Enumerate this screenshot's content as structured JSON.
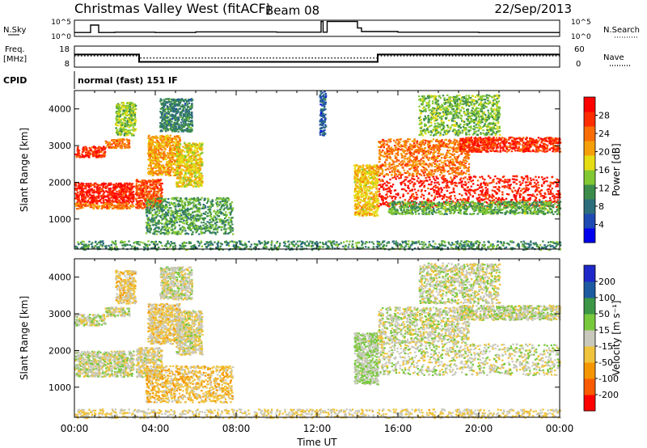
{
  "header": {
    "title": "Christmas Valley West (fitACF)",
    "beam": "Beam 08",
    "date": "22/Sep/2013"
  },
  "sky_panel": {
    "left_label": "N.Sky",
    "left_ticks": [
      "10^5",
      "10^0"
    ],
    "right_ticks": [
      "10^5",
      "10^0"
    ],
    "right_label": "N.Search",
    "series": [
      {
        "x": [
          0,
          0.8,
          1.2,
          2,
          3,
          4,
          6,
          8,
          10,
          12.2,
          12.3,
          12.5,
          14,
          14.2,
          16,
          18,
          20,
          24
        ],
        "y": [
          1.2,
          3.5,
          1.2,
          1.3,
          1.3,
          1.2,
          1.4,
          1.4,
          1.3,
          4.6,
          1.3,
          4.6,
          2.6,
          1.5,
          1.3,
          1.3,
          1.2,
          1.2
        ]
      }
    ]
  },
  "freq_panel": {
    "left_label_line1": "Freq.",
    "left_label_line2": "[MHz]",
    "left_ticks": [
      "18",
      "8"
    ],
    "right_ticks": [
      "60",
      "0"
    ],
    "right_label": "Nave",
    "freq_ylim": [
      8,
      18
    ],
    "freq_steps": [
      {
        "x": [
          0,
          3.2
        ],
        "y": 14
      },
      {
        "x": [
          3.2,
          15
        ],
        "y": 10.5
      },
      {
        "x": [
          15,
          24
        ],
        "y": 14
      }
    ],
    "nave_steps": [
      {
        "x": [
          0,
          3.2
        ],
        "y": 32
      },
      {
        "x": [
          3.2,
          15
        ],
        "y": 26
      },
      {
        "x": [
          15,
          24
        ],
        "y": 32
      }
    ]
  },
  "cpid_panel": {
    "label": "CPID",
    "mode_text": "normal (fast) 151 IF"
  },
  "chart_data": [
    {
      "type": "heatmap",
      "name": "power",
      "ylabel": "Slant Range [km]",
      "xlim": [
        0,
        24
      ],
      "ylim": [
        180,
        4500
      ],
      "yticks": [
        1000,
        2000,
        3000,
        4000
      ],
      "colorbar": {
        "label": "Power [dB]",
        "ticks": [
          "28",
          "24",
          "20",
          "16",
          "12",
          "8",
          "4"
        ],
        "range": [
          0,
          30
        ],
        "colors": [
          "#0000ee",
          "#1e4ab4",
          "#2d6e7c",
          "#3c8c4c",
          "#82c832",
          "#e6dc14",
          "#f5a00a",
          "#fa6e05",
          "#ff2d00",
          "#ff0000"
        ]
      },
      "regions": [
        {
          "x0": 0.0,
          "x1": 2.9,
          "y0": 1450,
          "y1": 2000,
          "value": 27
        },
        {
          "x0": 0.0,
          "x1": 2.9,
          "y0": 1300,
          "y1": 1450,
          "value": 22
        },
        {
          "x0": 0.0,
          "x1": 1.5,
          "y0": 2700,
          "y1": 3000,
          "value": 26
        },
        {
          "x0": 1.5,
          "x1": 2.7,
          "y0": 2950,
          "y1": 3200,
          "value": 22
        },
        {
          "x0": 2.0,
          "x1": 3.0,
          "y0": 3300,
          "y1": 4200,
          "value": 14
        },
        {
          "x0": 3.0,
          "x1": 4.3,
          "y0": 1300,
          "y1": 2100,
          "value": 24
        },
        {
          "x0": 3.6,
          "x1": 5.2,
          "y0": 2200,
          "y1": 3300,
          "value": 20
        },
        {
          "x0": 4.2,
          "x1": 5.8,
          "y0": 3400,
          "y1": 4300,
          "value": 9
        },
        {
          "x0": 3.5,
          "x1": 7.8,
          "y0": 600,
          "y1": 1600,
          "value": 11
        },
        {
          "x0": 5.0,
          "x1": 6.3,
          "y0": 1900,
          "y1": 3100,
          "value": 17
        },
        {
          "x0": 0.0,
          "x1": 24.0,
          "y0": 180,
          "y1": 420,
          "value": 10
        },
        {
          "x0": 12.1,
          "x1": 12.4,
          "y0": 3300,
          "y1": 4500,
          "value": 6
        },
        {
          "x0": 13.8,
          "x1": 15.0,
          "y0": 1100,
          "y1": 2500,
          "value": 18
        },
        {
          "x0": 15.0,
          "x1": 24.0,
          "y0": 1350,
          "y1": 2200,
          "value": 27
        },
        {
          "x0": 15.0,
          "x1": 19.5,
          "y0": 2200,
          "y1": 3200,
          "value": 22
        },
        {
          "x0": 15.5,
          "x1": 24.0,
          "y0": 1150,
          "y1": 1500,
          "value": 12
        },
        {
          "x0": 19.0,
          "x1": 24.0,
          "y0": 2850,
          "y1": 3250,
          "value": 26
        },
        {
          "x0": 17.0,
          "x1": 21.0,
          "y0": 3300,
          "y1": 4400,
          "value": 13
        }
      ]
    },
    {
      "type": "heatmap",
      "name": "velocity",
      "xlabel": "Time UT",
      "ylabel": "Slant Range [km]",
      "xlim": [
        0,
        24
      ],
      "ylim": [
        180,
        4500
      ],
      "xticks": [
        "00:00",
        "04:00",
        "08:00",
        "12:00",
        "16:00",
        "20:00",
        "00:00"
      ],
      "yticks": [
        1000,
        2000,
        3000,
        4000
      ],
      "colorbar": {
        "label": "Velocity [m s⁻¹]",
        "ticks": [
          "200",
          "100",
          "50",
          "15",
          "-15",
          "-50",
          "-100",
          "-200"
        ],
        "range": [
          -250,
          250
        ],
        "colors": [
          "#ff0000",
          "#fa5a00",
          "#f59600",
          "#f0c33c",
          "#c8c8bc",
          "#78c83c",
          "#3c9646",
          "#1e5aa0",
          "#1e28c8"
        ]
      },
      "regions": [
        {
          "x0": 0.0,
          "x1": 2.9,
          "y0": 1300,
          "y1": 2000,
          "value": 0
        },
        {
          "x0": 0.0,
          "x1": 1.5,
          "y0": 2700,
          "y1": 3000,
          "value": 0
        },
        {
          "x0": 1.5,
          "x1": 2.7,
          "y0": 2950,
          "y1": 3200,
          "value": -5
        },
        {
          "x0": 2.0,
          "x1": 3.0,
          "y0": 3300,
          "y1": 4200,
          "value": -40
        },
        {
          "x0": 3.0,
          "x1": 4.3,
          "y0": 1300,
          "y1": 2100,
          "value": -20
        },
        {
          "x0": 3.6,
          "x1": 5.2,
          "y0": 2200,
          "y1": 3300,
          "value": -40
        },
        {
          "x0": 4.2,
          "x1": 5.8,
          "y0": 3400,
          "y1": 4300,
          "value": -5
        },
        {
          "x0": 3.5,
          "x1": 7.8,
          "y0": 600,
          "y1": 1600,
          "value": -60
        },
        {
          "x0": 5.0,
          "x1": 6.3,
          "y0": 1900,
          "y1": 3100,
          "value": -10
        },
        {
          "x0": 0.0,
          "x1": 24.0,
          "y0": 180,
          "y1": 420,
          "value": -30
        },
        {
          "x0": 13.8,
          "x1": 15.0,
          "y0": 1100,
          "y1": 2500,
          "value": 25
        },
        {
          "x0": 15.0,
          "x1": 24.0,
          "y0": 1350,
          "y1": 2200,
          "value": 0
        },
        {
          "x0": 15.0,
          "x1": 19.5,
          "y0": 2200,
          "y1": 3200,
          "value": 0
        },
        {
          "x0": 19.0,
          "x1": 24.0,
          "y0": 2850,
          "y1": 3250,
          "value": 0
        },
        {
          "x0": 17.0,
          "x1": 21.0,
          "y0": 3300,
          "y1": 4400,
          "value": 0
        }
      ]
    }
  ]
}
